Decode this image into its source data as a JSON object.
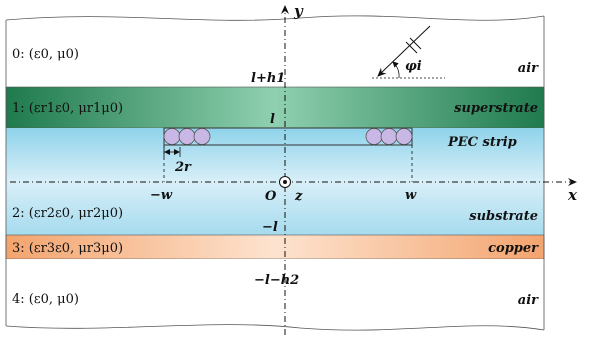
{
  "axes": {
    "x_label": "x",
    "y_label": "y",
    "z_label": "z",
    "origin_label": "O"
  },
  "regions": [
    {
      "id": 0,
      "name": "0: (ε0, μ0)",
      "material": "air",
      "color": "#ffffff"
    },
    {
      "id": 1,
      "name": "1: (εr1ε0, μr1μ0)",
      "material": "superstrate",
      "color": "#2e8b57"
    },
    {
      "id": 2,
      "name": "2: (εr2ε0, μr2μ0)",
      "material": "substrate",
      "color": "#a9dcec"
    },
    {
      "id": 3,
      "name": "3: (εr3ε0, μr3μ0)",
      "material": "copper",
      "color": "#f4b183"
    },
    {
      "id": 4,
      "name": "4: (ε0, μ0)",
      "material": "air",
      "color": "#ffffff"
    }
  ],
  "boundaries": {
    "top": "l+h1",
    "upper": "l",
    "lower": "−l",
    "bottom": "−l−h2"
  },
  "strip": {
    "label": "PEC strip",
    "left_edge": "−w",
    "right_edge": "w",
    "radius_label": "2r"
  },
  "incidence": {
    "angle_label": "φi"
  }
}
